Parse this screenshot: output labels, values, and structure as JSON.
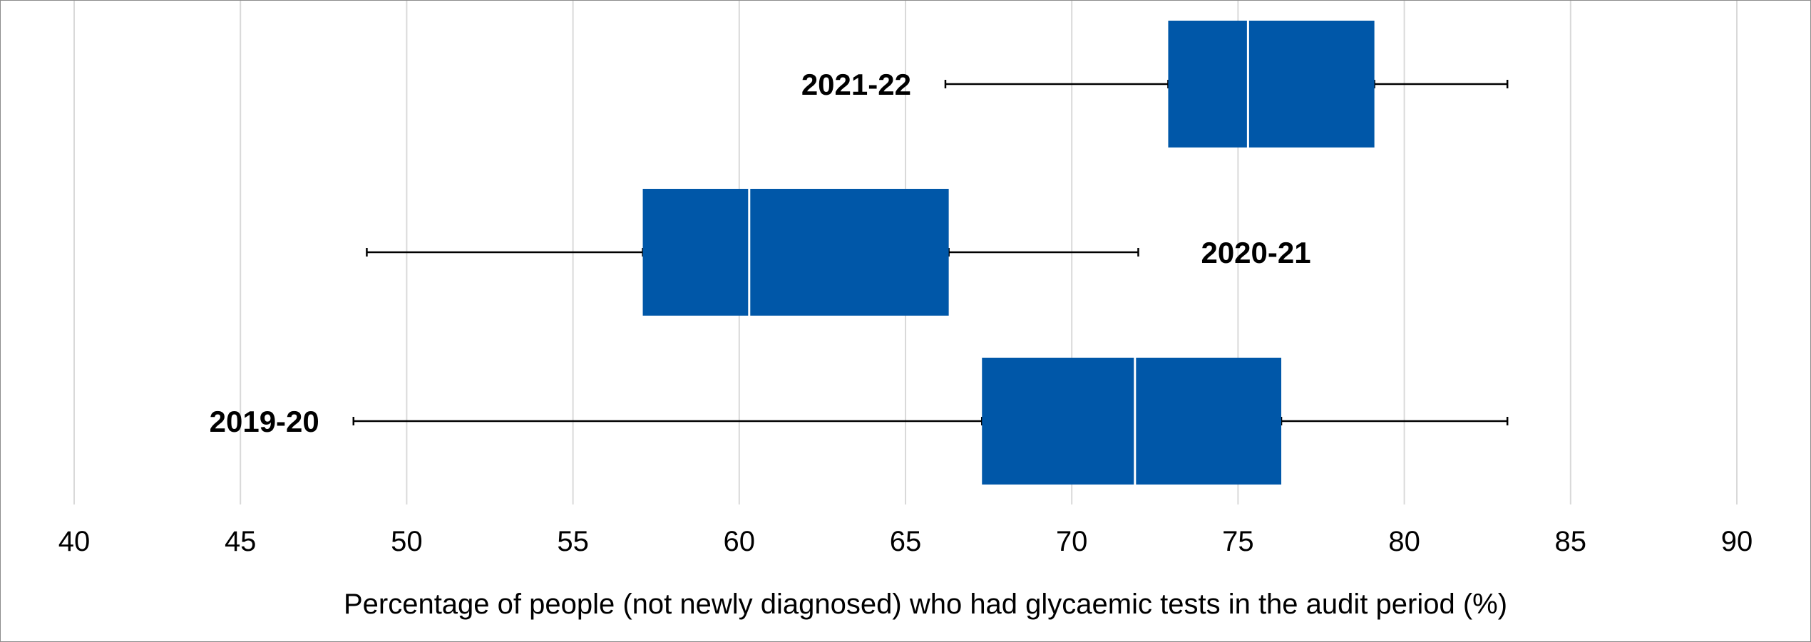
{
  "chart_data": {
    "type": "box",
    "orientation": "horizontal",
    "xlabel": "Percentage of people (not newly diagnosed) who had glycaemic tests in the audit period (%)",
    "xlim": [
      40,
      90
    ],
    "xticks": [
      40,
      45,
      50,
      55,
      60,
      65,
      70,
      75,
      80,
      85,
      90
    ],
    "grid": true,
    "colors": {
      "box": "#0057A8",
      "median": "#ffffff",
      "whisker": "#000000",
      "grid": "#d9d9d9"
    },
    "series": [
      {
        "label": "2021-22",
        "min": 66.2,
        "q1": 72.9,
        "median": 75.3,
        "q3": 79.1,
        "max": 83.1,
        "label_side": "left"
      },
      {
        "label": "2020-21",
        "min": 48.8,
        "q1": 57.1,
        "median": 60.3,
        "q3": 66.3,
        "max": 72.0,
        "label_side": "right"
      },
      {
        "label": "2019-20",
        "min": 48.4,
        "q1": 67.3,
        "median": 71.9,
        "q3": 76.3,
        "max": 83.1,
        "label_side": "left"
      }
    ]
  }
}
